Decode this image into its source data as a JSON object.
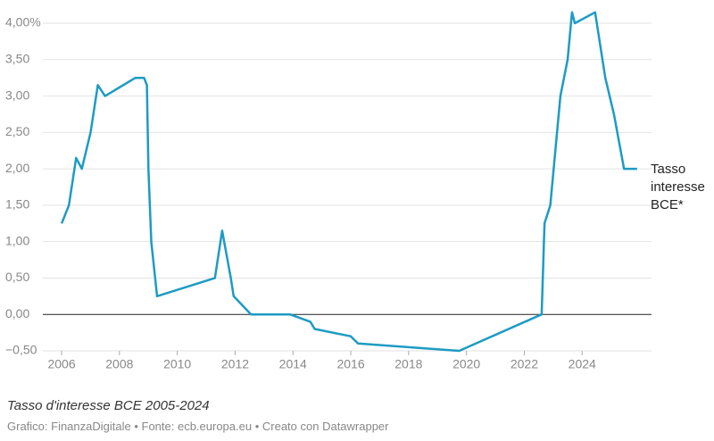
{
  "chart_data": {
    "type": "line",
    "title": "Tasso d'interesse BCE 2005-2024",
    "source": "Grafico: FinanzaDigitale • Fonte: ecb.europa.eu • Creato con Datawrapper",
    "x": [
      2006.0,
      2006.25,
      2006.5,
      2006.7,
      2007.0,
      2007.25,
      2007.5,
      2008.55,
      2008.85,
      2008.95,
      2009.0,
      2009.1,
      2009.3,
      2011.3,
      2011.55,
      2011.85,
      2011.95,
      2012.55,
      2013.9,
      2014.6,
      2014.75,
      2016.0,
      2016.25,
      2019.75,
      2022.6,
      2022.7,
      2022.9,
      2023.25,
      2023.5,
      2023.65,
      2023.75,
      2024.45,
      2024.8,
      2025.1,
      2025.45,
      2025.9
    ],
    "series": [
      {
        "name": "Tasso interesse BCE*",
        "color": "#1d9bc3",
        "values": [
          1.25,
          1.5,
          2.15,
          2.0,
          2.5,
          3.15,
          3.0,
          3.25,
          3.25,
          3.15,
          2.0,
          1.0,
          0.25,
          0.5,
          1.15,
          0.5,
          0.25,
          0.0,
          0.0,
          -0.1,
          -0.2,
          -0.3,
          -0.4,
          -0.5,
          0.0,
          1.25,
          1.5,
          3.0,
          3.5,
          4.15,
          4.0,
          4.15,
          3.25,
          2.75,
          2.0,
          2.0
        ]
      }
    ],
    "xlim": [
      2005.35,
      2026.4
    ],
    "xticks": [
      2006,
      2008,
      2010,
      2012,
      2014,
      2016,
      2018,
      2020,
      2022,
      2024
    ],
    "ylim": [
      -0.5,
      4.2
    ],
    "yticks": [
      {
        "value": -0.5,
        "label": "−0,50"
      },
      {
        "value": 0,
        "label": "0,00"
      },
      {
        "value": 0.5,
        "label": "0,50"
      },
      {
        "value": 1.0,
        "label": "1,00"
      },
      {
        "value": 1.5,
        "label": "1,50"
      },
      {
        "value": 2.0,
        "label": "2,00"
      },
      {
        "value": 2.5,
        "label": "2,50"
      },
      {
        "value": 3.0,
        "label": "3,00"
      },
      {
        "value": 3.5,
        "label": "3,50"
      },
      {
        "value": 4.0,
        "label": "4,00%"
      }
    ],
    "grid": true
  }
}
